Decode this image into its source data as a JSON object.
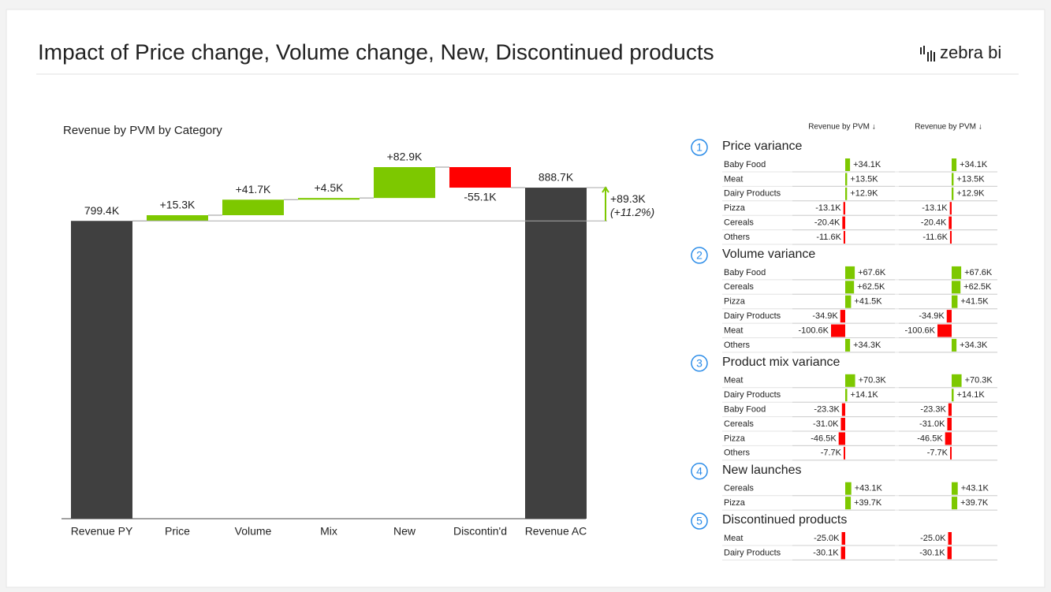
{
  "header": {
    "title": "Impact of Price change, Volume change, New, Discontinued products",
    "logo": "zebra bi"
  },
  "chart_data": {
    "type": "waterfall",
    "title": "Revenue by PVM by Category",
    "categories": [
      "Revenue PY",
      "Price",
      "Volume",
      "Mix",
      "New",
      "Discontin'd",
      "Revenue AC"
    ],
    "measure": [
      "total",
      "relative",
      "relative",
      "relative",
      "relative",
      "relative",
      "total"
    ],
    "values": [
      799.4,
      15.3,
      41.7,
      4.5,
      82.9,
      -55.1,
      888.7
    ],
    "value_labels": [
      "799.4K",
      "+15.3K",
      "+41.7K",
      "+4.5K",
      "+82.9K",
      "-55.1K",
      "888.7K"
    ],
    "total_color": "#404040",
    "positive_color": "#7dc800",
    "negative_color": "#ff0000",
    "variance": {
      "value": 89.3,
      "label": "+89.3K",
      "percent": 11.2,
      "percent_label": "(+11.2%)"
    }
  },
  "table": {
    "headers": [
      "Revenue by PVM ↓",
      "Revenue by PVM ↓"
    ],
    "positive_color": "#7dc800",
    "negative_color": "#ff0000",
    "sections": [
      {
        "number": 1,
        "title": "Price variance",
        "rows": [
          {
            "name": "Baby Food",
            "value": 34.1,
            "label": "+34.1K"
          },
          {
            "name": "Meat",
            "value": 13.5,
            "label": "+13.5K"
          },
          {
            "name": "Dairy Products",
            "value": 12.9,
            "label": "+12.9K"
          },
          {
            "name": "Pizza",
            "value": -13.1,
            "label": "-13.1K"
          },
          {
            "name": "Cereals",
            "value": -20.4,
            "label": "-20.4K"
          },
          {
            "name": "Others",
            "value": -11.6,
            "label": "-11.6K"
          }
        ]
      },
      {
        "number": 2,
        "title": "Volume variance",
        "rows": [
          {
            "name": "Baby Food",
            "value": 67.6,
            "label": "+67.6K"
          },
          {
            "name": "Cereals",
            "value": 62.5,
            "label": "+62.5K"
          },
          {
            "name": "Pizza",
            "value": 41.5,
            "label": "+41.5K"
          },
          {
            "name": "Dairy Products",
            "value": -34.9,
            "label": "-34.9K"
          },
          {
            "name": "Meat",
            "value": -100.6,
            "label": "-100.6K"
          },
          {
            "name": "Others",
            "value": 34.3,
            "label": "+34.3K"
          }
        ]
      },
      {
        "number": 3,
        "title": "Product mix variance",
        "rows": [
          {
            "name": "Meat",
            "value": 70.3,
            "label": "+70.3K"
          },
          {
            "name": "Dairy Products",
            "value": 14.1,
            "label": "+14.1K"
          },
          {
            "name": "Baby Food",
            "value": -23.3,
            "label": "-23.3K"
          },
          {
            "name": "Cereals",
            "value": -31.0,
            "label": "-31.0K"
          },
          {
            "name": "Pizza",
            "value": -46.5,
            "label": "-46.5K"
          },
          {
            "name": "Others",
            "value": -7.7,
            "label": "-7.7K"
          }
        ]
      },
      {
        "number": 4,
        "title": "New launches",
        "rows": [
          {
            "name": "Cereals",
            "value": 43.1,
            "label": "+43.1K"
          },
          {
            "name": "Pizza",
            "value": 39.7,
            "label": "+39.7K"
          }
        ]
      },
      {
        "number": 5,
        "title": "Discontinued products",
        "rows": [
          {
            "name": "Meat",
            "value": -25.0,
            "label": "-25.0K"
          },
          {
            "name": "Dairy Products",
            "value": -30.1,
            "label": "-30.1K"
          }
        ]
      }
    ]
  }
}
